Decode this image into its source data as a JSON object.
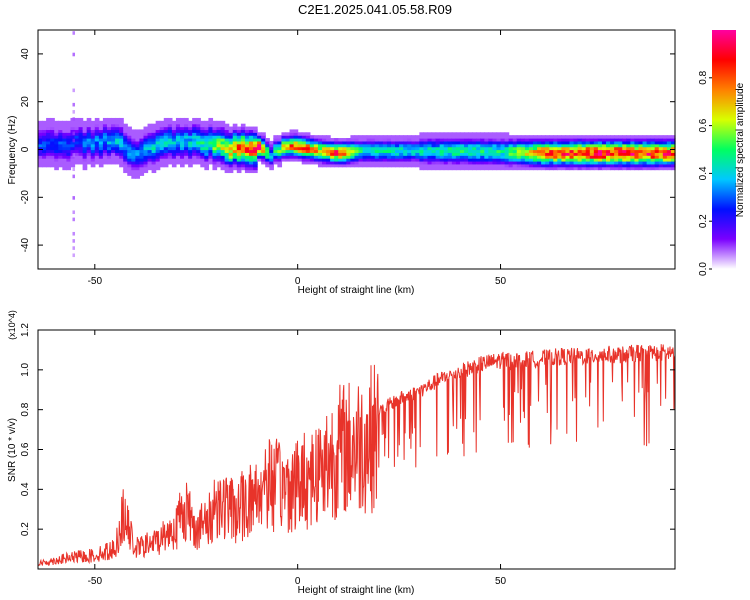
{
  "title": "C2E1.2025.041.05.58.R09",
  "colors": {
    "snr_line": "#e8332a",
    "spectrogram_bg": "#ffffff",
    "axis": "#000000"
  },
  "chart_data": [
    {
      "type": "heatmap",
      "xlabel": "Height of straight line (km)",
      "ylabel": "Frequency (Hz)",
      "xlim": [
        -64,
        93
      ],
      "ylim": [
        -50,
        50
      ],
      "x_ticks": [
        -50,
        0,
        50
      ],
      "y_ticks": [
        -40,
        -20,
        0,
        20,
        40
      ],
      "colorbar": {
        "label": "Normalized spectral amplitude",
        "range": [
          0,
          1
        ],
        "ticks": [
          0.0,
          0.2,
          0.4,
          0.6,
          0.8
        ],
        "tick_labels": [
          "0.0",
          "0.2",
          "0.4",
          "0.6",
          "0.8"
        ],
        "colormap": [
          "#ffffff",
          "#7a00ff",
          "#0010ff",
          "#00c8ff",
          "#00ff60",
          "#d8ff00",
          "#ff8000",
          "#ff0000",
          "#ff00a0"
        ]
      },
      "ridge": {
        "x": [
          -64,
          -55,
          -45,
          -40,
          -35,
          -30,
          -25,
          -20,
          -15,
          -10,
          -7,
          -5,
          0,
          5,
          10,
          15,
          20,
          30,
          40,
          50,
          60,
          70,
          80,
          93
        ],
        "center_hz": [
          1.5,
          2,
          3,
          -3,
          2,
          3,
          3,
          1,
          0,
          0,
          -2,
          0,
          0.5,
          -1,
          -2,
          -1,
          -1,
          -1,
          -1,
          -1.5,
          -2,
          -2,
          -2,
          -2
        ],
        "peak_amplitude": [
          0.3,
          0.3,
          0.4,
          0.35,
          0.45,
          0.4,
          0.45,
          0.6,
          0.85,
          0.95,
          0.4,
          0.6,
          0.95,
          0.7,
          0.95,
          0.5,
          0.5,
          0.45,
          0.5,
          0.5,
          0.85,
          0.95,
          0.95,
          0.9
        ]
      }
    },
    {
      "type": "line",
      "xlabel": "Height of straight line (km)",
      "ylabel": "SNR (10 * v/v)",
      "multiplier": "(x10^4)",
      "xlim": [
        -64,
        93
      ],
      "ylim": [
        0,
        1.2
      ],
      "x_ticks": [
        -50,
        0,
        50
      ],
      "y_ticks": [
        0.2,
        0.4,
        0.6,
        0.8,
        1.0,
        1.2
      ],
      "y_tick_labels": [
        "0.2",
        "0.4",
        "0.6",
        "0.8",
        "1.0",
        "1.2"
      ],
      "series": [
        {
          "x": [
            -64,
            -60,
            -55,
            -50,
            -45,
            -43,
            -40,
            -35,
            -30,
            -28,
            -25,
            -22,
            -20,
            -18,
            -15,
            -12,
            -10,
            -8,
            -5,
            -2,
            0,
            5,
            10,
            15,
            20,
            25,
            30,
            35,
            40,
            45,
            50,
            55,
            60,
            65,
            70,
            75,
            80,
            85,
            90,
            93
          ],
          "values": [
            0.03,
            0.05,
            0.07,
            0.08,
            0.12,
            0.32,
            0.12,
            0.16,
            0.25,
            0.38,
            0.25,
            0.28,
            0.42,
            0.38,
            0.35,
            0.42,
            0.45,
            0.55,
            0.5,
            0.5,
            0.52,
            0.6,
            0.72,
            0.76,
            0.82,
            0.88,
            0.92,
            0.98,
            1.02,
            1.06,
            1.08,
            1.08,
            1.09,
            1.1,
            1.1,
            1.11,
            1.11,
            1.12,
            1.12,
            1.12
          ]
        }
      ]
    }
  ]
}
